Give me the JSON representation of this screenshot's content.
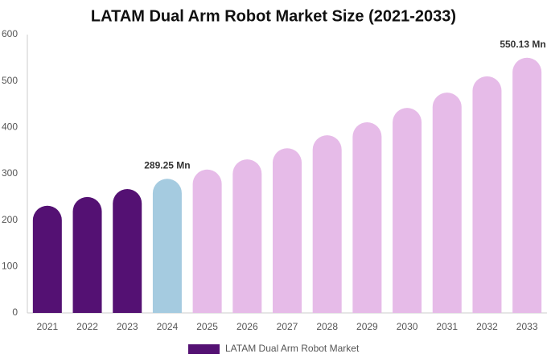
{
  "chart_data": {
    "type": "bar",
    "title": "LATAM Dual Arm Robot Market Size (2021-2033)",
    "categories": [
      "2021",
      "2022",
      "2023",
      "2024",
      "2025",
      "2026",
      "2027",
      "2028",
      "2029",
      "2030",
      "2031",
      "2032",
      "2033"
    ],
    "series": [
      {
        "name": "LATAM Dual Arm Robot Market",
        "color": "#541173",
        "values": [
          231,
          250,
          267,
          289.25,
          309,
          331,
          355,
          383,
          411,
          442,
          475,
          510,
          550.13
        ],
        "colors": [
          "#541173",
          "#541173",
          "#541173",
          "#a5cbe0",
          "#e6bbe8",
          "#e6bbe8",
          "#e6bbe8",
          "#e6bbe8",
          "#e6bbe8",
          "#e6bbe8",
          "#e6bbe8",
          "#e6bbe8",
          "#e6bbe8"
        ],
        "value_labels": [
          null,
          null,
          null,
          "289.25 Mn",
          null,
          null,
          null,
          null,
          null,
          null,
          null,
          null,
          "550.13 Mn"
        ]
      }
    ],
    "ylim": [
      0,
      600
    ],
    "yticks": [
      0,
      100,
      200,
      300,
      400,
      500,
      600
    ],
    "grid": false
  }
}
